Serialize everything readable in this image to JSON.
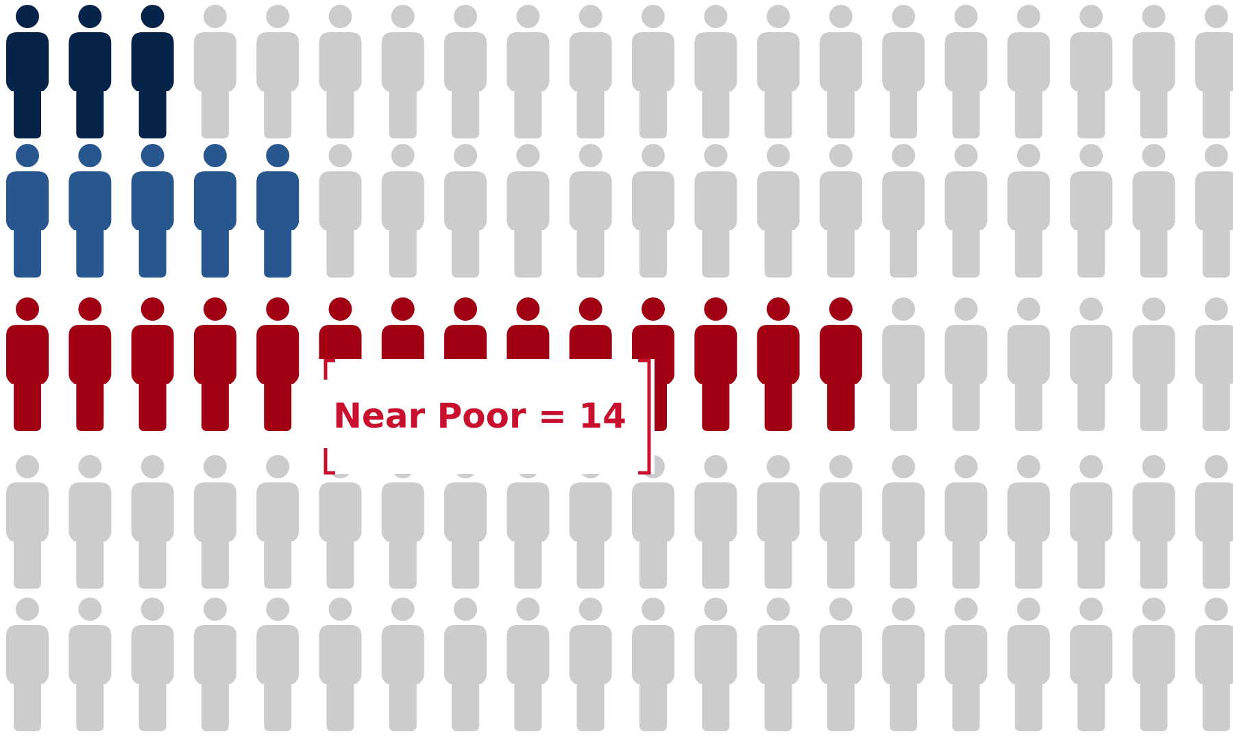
{
  "chart_data": {
    "type": "pictograph",
    "columns": 20,
    "rows": [
      {
        "highlighted": 3,
        "color": "#062349"
      },
      {
        "highlighted": 5,
        "color": "#27578e"
      },
      {
        "highlighted": 14,
        "color": "#a00011"
      },
      {
        "highlighted": 0,
        "color": "#a00011"
      },
      {
        "highlighted": 0,
        "color": "#a00011"
      }
    ],
    "inactive_color": "#cccccc",
    "annotation": {
      "text": "Near Poor = 14",
      "color": "#c8102e",
      "row": 2
    }
  }
}
